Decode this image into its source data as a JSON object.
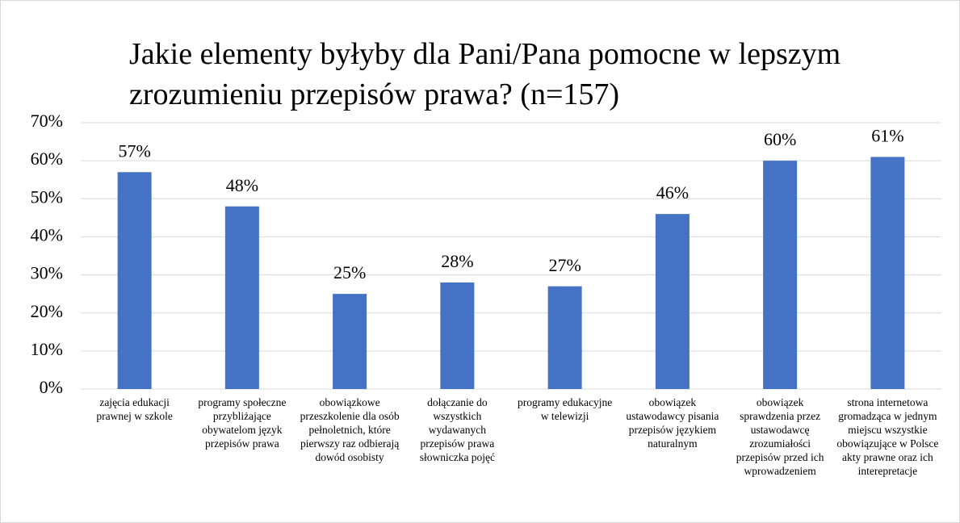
{
  "chart_data": {
    "type": "bar",
    "title": "Jakie elementy byłyby dla Pani/Pana pomocne w lepszym zrozumieniu przepisów prawa? (n=157)",
    "categories": [
      "zajęcia edukacji prawnej w szkole",
      "programy społeczne przybliżające obywatelom język przepisów prawa",
      "obowiązkowe przeszkolenie dla osób pełnoletnich, które pierwszy raz odbierają dowód osobisty",
      "dołączanie do wszystkich wydawanych przepisów prawa słowniczka pojęć",
      "programy edukacyjne w telewizji",
      "obowiązek ustawodawcy pisania przepisów językiem naturalnym",
      "obowiązek sprawdzenia przez ustawodawcę zrozumiałości przepisów przed ich wprowadzeniem",
      "strona internetowa gromadząca w jednym miejscu wszystkie obowiązujące w Polsce akty prawne oraz ich interepretacje"
    ],
    "values": [
      57,
      48,
      25,
      28,
      27,
      46,
      60,
      61
    ],
    "value_labels": [
      "57%",
      "48%",
      "25%",
      "28%",
      "27%",
      "46%",
      "60%",
      "61%"
    ],
    "color": "#4472c4",
    "ylim": [
      0,
      70
    ],
    "yticks": [
      {
        "value": 0,
        "label": "0%"
      },
      {
        "value": 10,
        "label": "10%"
      },
      {
        "value": 20,
        "label": "20%"
      },
      {
        "value": 30,
        "label": "30%"
      },
      {
        "value": 40,
        "label": "40%"
      },
      {
        "value": 50,
        "label": "50%"
      },
      {
        "value": 60,
        "label": "60%"
      },
      {
        "value": 70,
        "label": "70%"
      }
    ],
    "grid": true
  }
}
